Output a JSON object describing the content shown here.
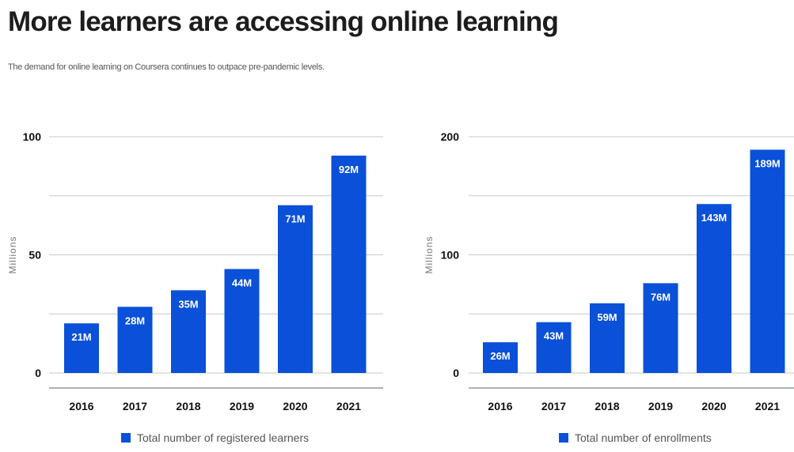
{
  "header": {
    "title": "More learners are accessing online learning",
    "subtitle": "The demand for online learning on Coursera continues to outpace pre-pandemic levels."
  },
  "colors": {
    "bar": "#0a50d8",
    "grid": "#c8c8c8",
    "axis": "#8a9aa4"
  },
  "chart_data": [
    {
      "type": "bar",
      "categories": [
        "2016",
        "2017",
        "2018",
        "2019",
        "2020",
        "2021"
      ],
      "series": [
        {
          "name": "Total number of registered learners",
          "values": [
            21,
            28,
            35,
            44,
            71,
            92
          ],
          "labels": [
            "21M",
            "28M",
            "35M",
            "44M",
            "71M",
            "92M"
          ]
        }
      ],
      "ylabel": "Millions",
      "ylim": [
        0,
        100
      ],
      "yticks": [
        0,
        50,
        100
      ],
      "grid": true,
      "legend": "bottom"
    },
    {
      "type": "bar",
      "categories": [
        "2016",
        "2017",
        "2018",
        "2019",
        "2020",
        "2021"
      ],
      "series": [
        {
          "name": "Total number of enrollments",
          "values": [
            26,
            43,
            59,
            76,
            143,
            189
          ],
          "labels": [
            "26M",
            "43M",
            "59M",
            "76M",
            "143M",
            "189M"
          ]
        }
      ],
      "ylabel": "Millions",
      "ylim": [
        0,
        200
      ],
      "yticks": [
        0,
        100,
        200
      ],
      "grid": true,
      "legend": "bottom"
    }
  ]
}
